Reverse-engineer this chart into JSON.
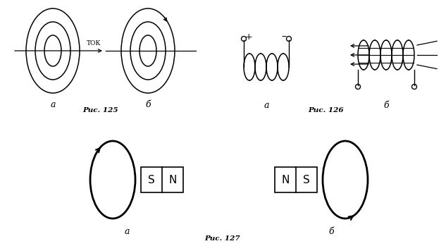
{
  "fig_width": 6.33,
  "fig_height": 3.49,
  "dpi": 100,
  "bg_color": "#ffffff",
  "line_color": "#000000",
  "caption_125": "Рис. 125",
  "caption_126": "Рис. 126",
  "caption_127": "Рис. 127",
  "label_a": "а",
  "label_b": "б",
  "tok_label": "ТОК"
}
